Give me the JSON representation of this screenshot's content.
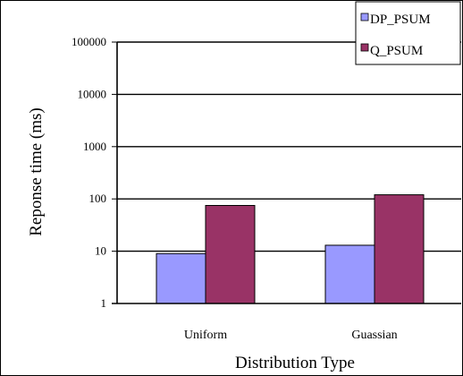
{
  "chart_data": {
    "type": "bar",
    "title": "",
    "xlabel": "Distribution Type",
    "ylabel": "Reponse time (ms)",
    "yscale": "log",
    "ylim": [
      1,
      100000
    ],
    "yticks": [
      "1",
      "10",
      "100",
      "1000",
      "10000",
      "100000"
    ],
    "grid": true,
    "legend_position": "top-right",
    "categories": [
      "Uniform",
      "Guassian"
    ],
    "series": [
      {
        "name": "DP_PSUM",
        "color": "#9999ff",
        "values": [
          9,
          13
        ]
      },
      {
        "name": "Q_PSUM",
        "color": "#993366",
        "values": [
          75,
          120
        ]
      }
    ]
  }
}
